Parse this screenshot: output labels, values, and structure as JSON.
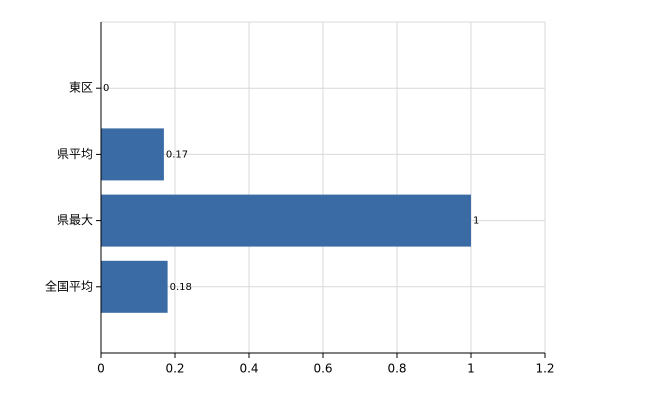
{
  "chart_data": {
    "type": "hbar",
    "categories": [
      "東区",
      "県平均",
      "県最大",
      "全国平均"
    ],
    "values": [
      0,
      0.17,
      1,
      0.18
    ],
    "color": "#3b6ba5",
    "xlim": [
      0,
      1.2
    ],
    "xticks": [
      0,
      0.2,
      0.4,
      0.6,
      0.8,
      1,
      1.2
    ],
    "grid": true
  }
}
